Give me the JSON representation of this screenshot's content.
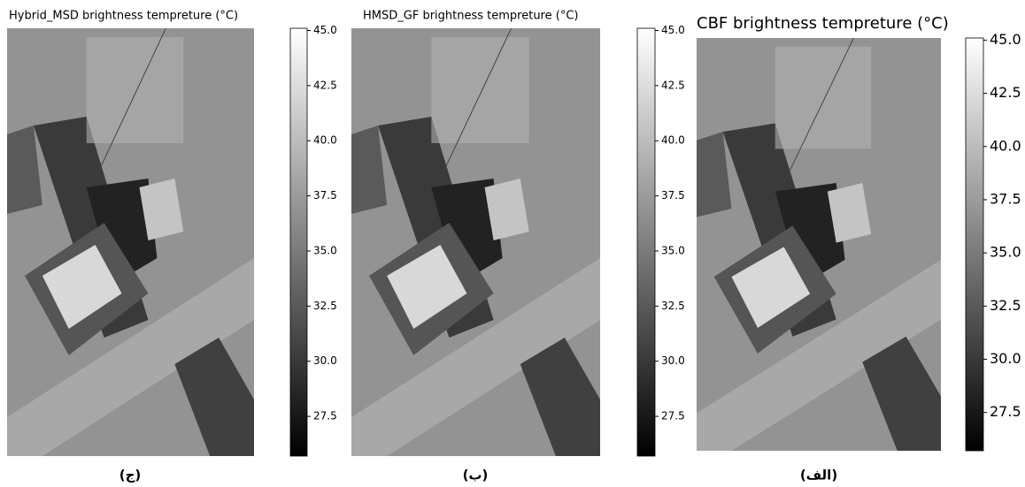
{
  "panels": [
    {
      "title": "Hybrid_MSD brightness tempreture (°C)",
      "caption": "(ج)",
      "colorbar": {
        "lim": [
          25.7,
          45.1
        ],
        "ticks": [
          {
            "value": 45,
            "label": "45.0"
          },
          {
            "value": 42.5,
            "label": "42.5"
          },
          {
            "value": 40,
            "label": "40.0"
          },
          {
            "value": 37.5,
            "label": "37.5"
          },
          {
            "value": 35,
            "label": "35.0"
          },
          {
            "value": 32.5,
            "label": "32.5"
          },
          {
            "value": 30,
            "label": "30.0"
          },
          {
            "value": 27.5,
            "label": "27.5"
          }
        ]
      }
    },
    {
      "title": "HMSD_GF brightness tempreture (°C)",
      "caption": "(ب)",
      "colorbar": {
        "lim": [
          25.7,
          45.1
        ],
        "ticks": [
          {
            "value": 45,
            "label": "45.0"
          },
          {
            "value": 42.5,
            "label": "42.5"
          },
          {
            "value": 40,
            "label": "40.0"
          },
          {
            "value": 37.5,
            "label": "37.5"
          },
          {
            "value": 35,
            "label": "35.0"
          },
          {
            "value": 32.5,
            "label": "32.5"
          },
          {
            "value": 30,
            "label": "30.0"
          },
          {
            "value": 27.5,
            "label": "27.5"
          }
        ]
      }
    },
    {
      "title": "CBF brightness tempreture (°C)",
      "caption": "(الف)",
      "colorbar": {
        "lim": [
          25.7,
          45.1
        ],
        "ticks": [
          {
            "value": 45,
            "label": "45.0"
          },
          {
            "value": 42.5,
            "label": "42.5"
          },
          {
            "value": 40,
            "label": "40.0"
          },
          {
            "value": 37.5,
            "label": "37.5"
          },
          {
            "value": 35,
            "label": "35.0"
          },
          {
            "value": 32.5,
            "label": "32.5"
          },
          {
            "value": 30,
            "label": "30.0"
          },
          {
            "value": 27.5,
            "label": "27.5"
          }
        ]
      }
    }
  ]
}
